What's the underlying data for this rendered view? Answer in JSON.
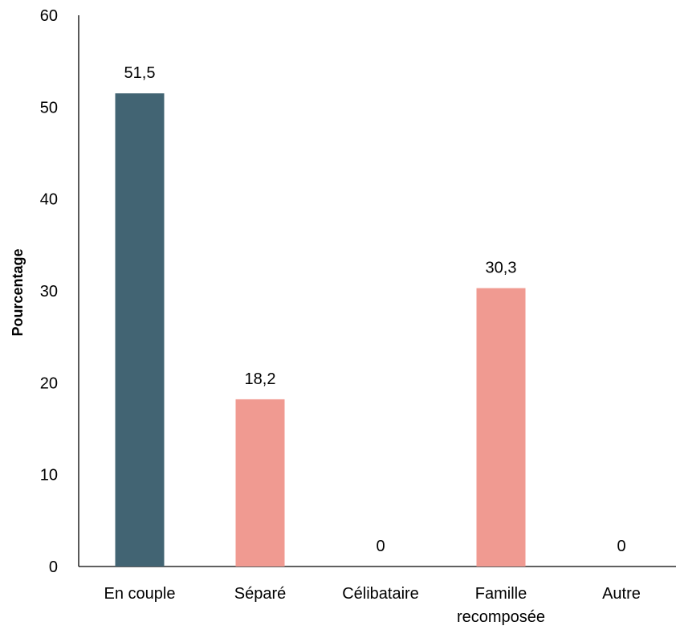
{
  "chart_data": {
    "type": "bar",
    "title": "",
    "xlabel": "",
    "ylabel": "Pourcentage",
    "ylim": [
      0,
      60
    ],
    "yticks": [
      0,
      10,
      20,
      30,
      40,
      50,
      60
    ],
    "grid": false,
    "categories": [
      [
        "En couple"
      ],
      [
        "Séparé"
      ],
      [
        "Célibataire"
      ],
      [
        "Famille",
        "recomposée"
      ],
      [
        "Autre"
      ]
    ],
    "values": [
      51.5,
      18.2,
      0,
      30.3,
      0
    ],
    "data_labels": [
      "51,5",
      "18,2",
      "0",
      "30,3",
      "0"
    ],
    "bar_colors": [
      "#426473",
      "#F09A91",
      "#F09A91",
      "#F09A91",
      "#F09A91"
    ],
    "axis_color": "#000000"
  }
}
